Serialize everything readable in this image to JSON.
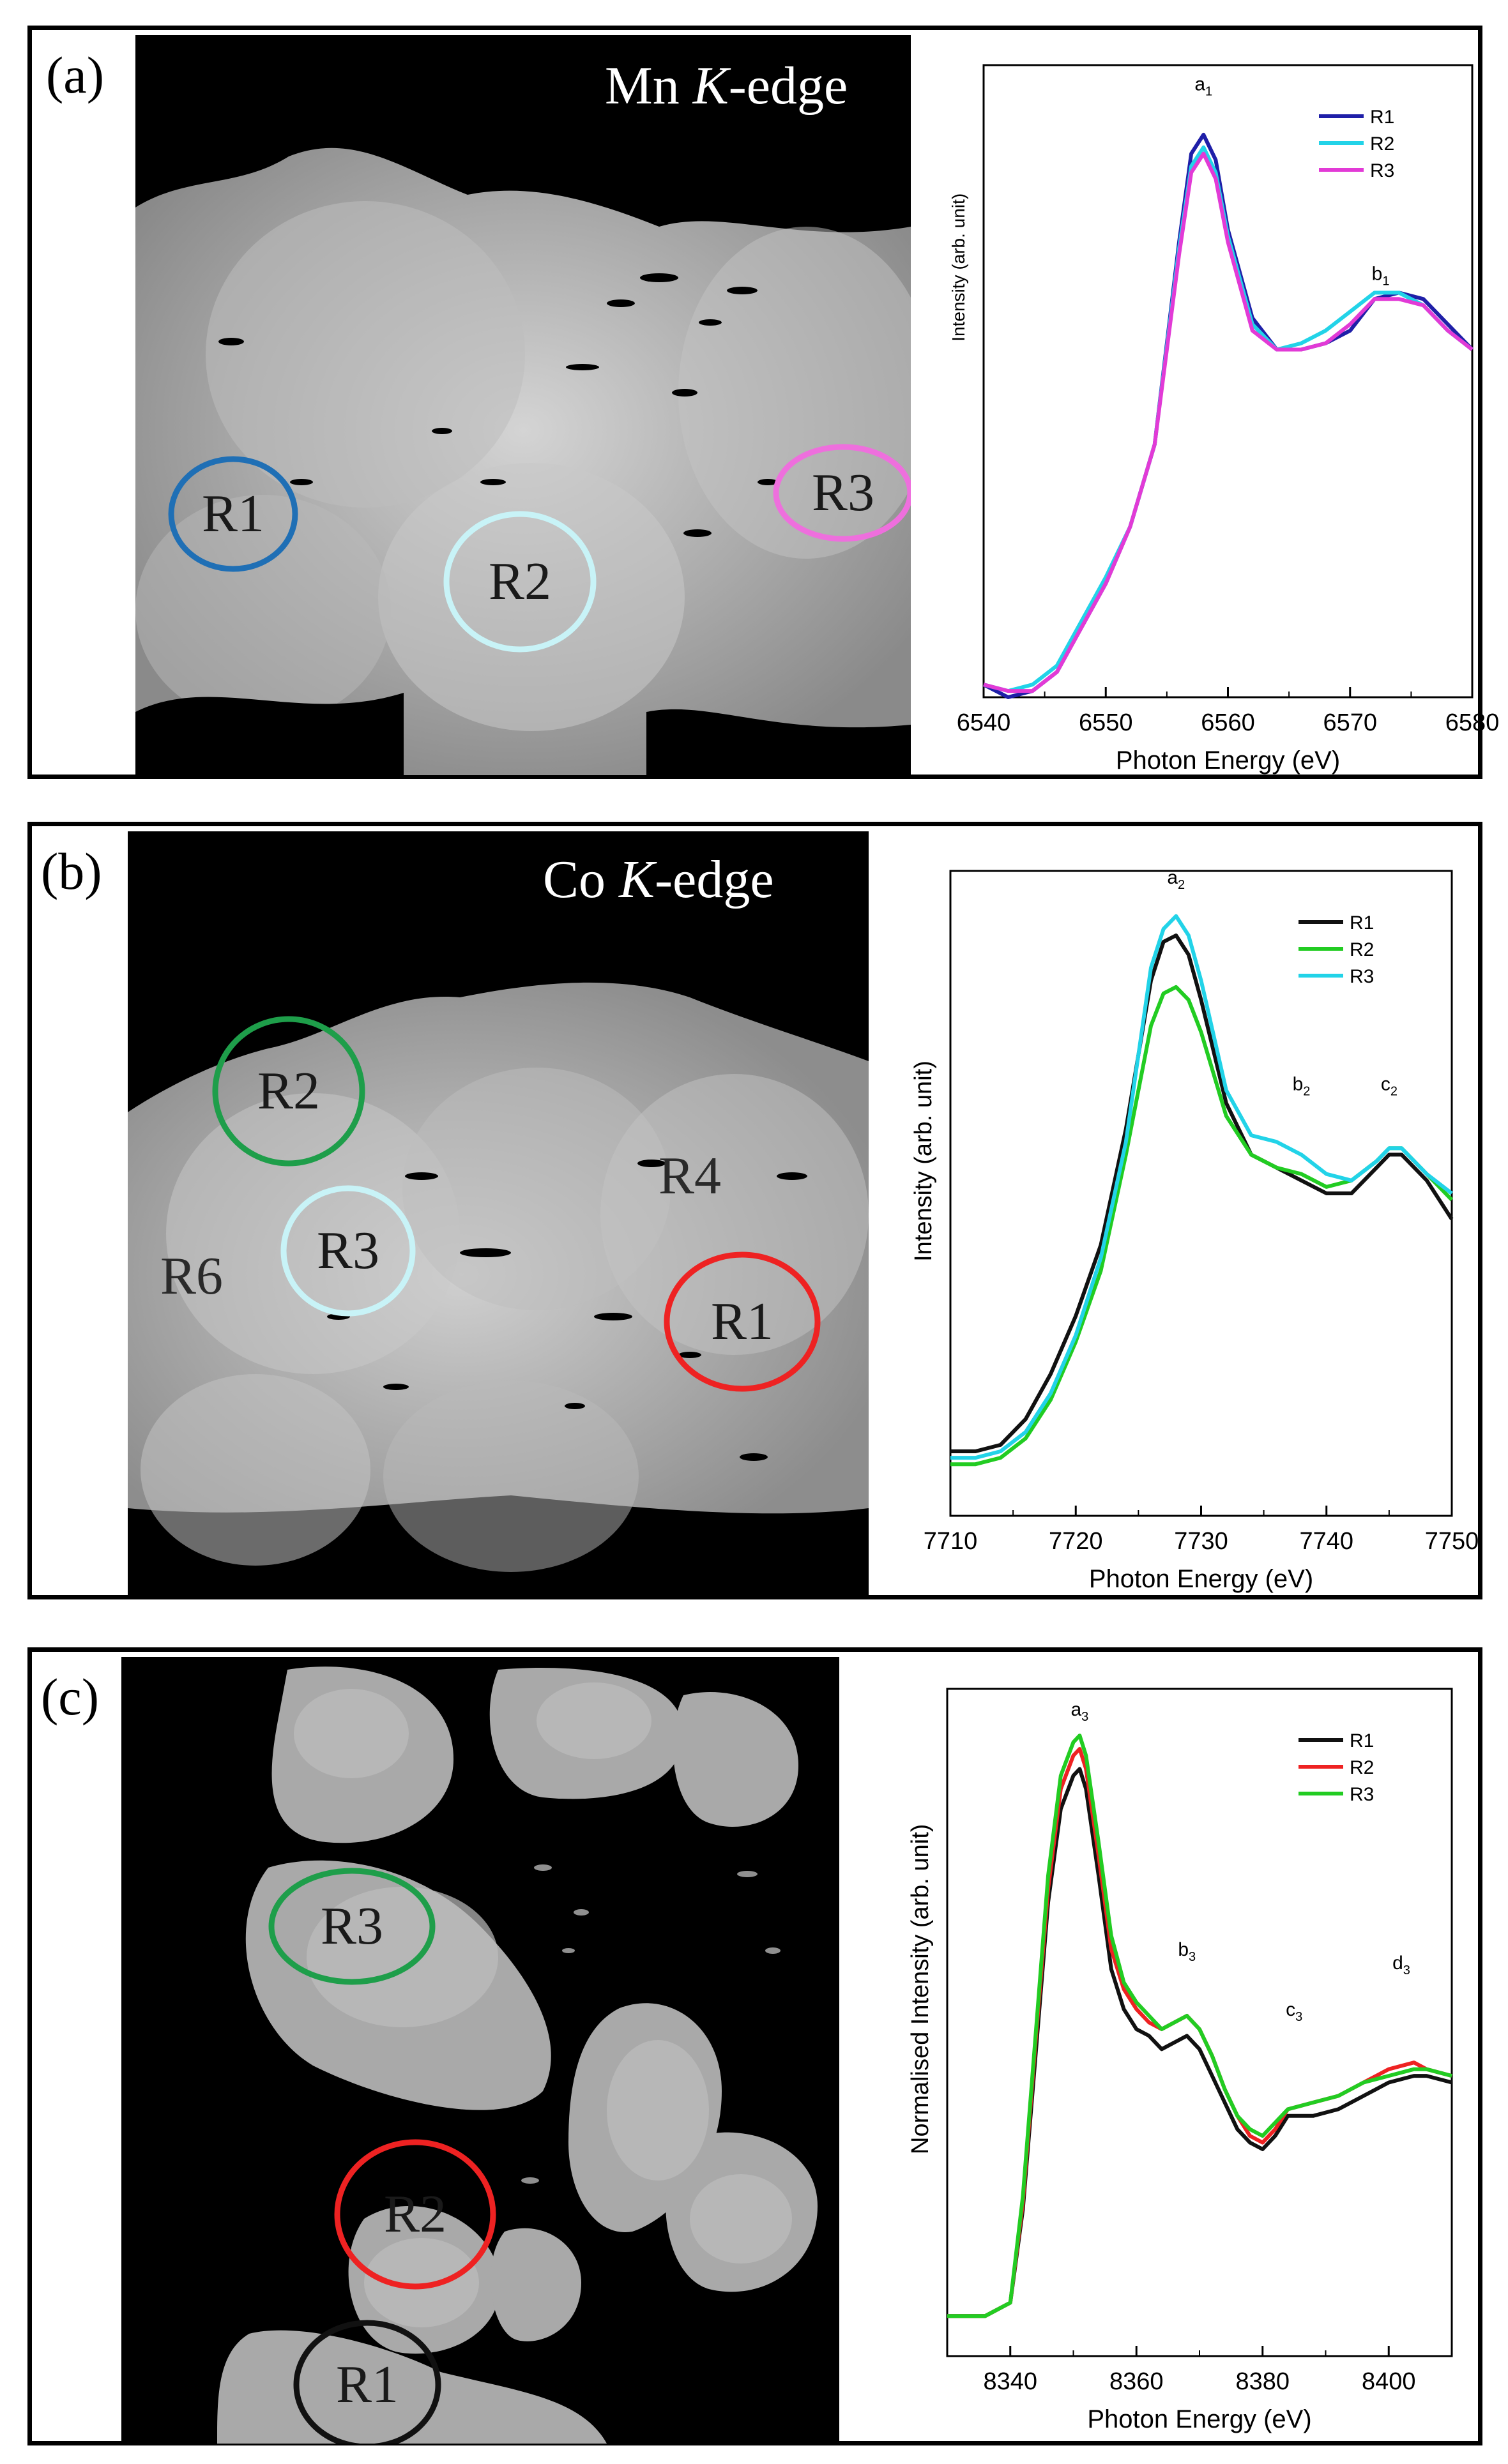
{
  "panels": [
    {
      "letter": "(a)",
      "edge_element": "Mn",
      "edge_italic": "K",
      "edge_suffix": "-edge",
      "roi_labels": [
        {
          "text": "R1",
          "color": "#1f6fb5"
        },
        {
          "text": "R2",
          "color": "#c8f3f7"
        },
        {
          "text": "R3",
          "color": "#ee6fdd"
        }
      ]
    },
    {
      "letter": "(b)",
      "edge_element": "Co",
      "edge_italic": "K",
      "edge_suffix": "-edge",
      "roi_labels": [
        {
          "text": "R1",
          "color": "#ee2222"
        },
        {
          "text": "R2",
          "color": "#1e9e4a"
        },
        {
          "text": "R3",
          "color": "#c8f3f7"
        },
        {
          "text": "R4",
          "color": null
        },
        {
          "text": "R6",
          "color": null
        }
      ]
    },
    {
      "letter": "(c)",
      "edge_element": "",
      "edge_italic": "",
      "edge_suffix": "",
      "roi_labels": [
        {
          "text": "R1",
          "color": "#111111"
        },
        {
          "text": "R2",
          "color": "#ee2222"
        },
        {
          "text": "R3",
          "color": "#1e9e4a"
        }
      ]
    }
  ],
  "chart_data": [
    {
      "type": "line",
      "title": "",
      "xlabel": "Photon Energy (eV)",
      "ylabel": "Intensity (arb. unit)",
      "xlim": [
        6540,
        6580
      ],
      "ylim": [
        0,
        1.0
      ],
      "xticks": [
        "6540",
        "6550",
        "6560",
        "6570",
        "6580"
      ],
      "legend_position": "top-right",
      "grid": false,
      "annotations": [
        {
          "text": "a",
          "sub": "1",
          "x": 6558,
          "y": 0.96
        },
        {
          "text": "b",
          "sub": "1",
          "x": 6572.5,
          "y": 0.66
        }
      ],
      "series": [
        {
          "name": "R1",
          "color": "#1f1fa8",
          "x": [
            6540,
            6542,
            6544,
            6546,
            6548,
            6550,
            6552,
            6554,
            6556,
            6557,
            6558,
            6559,
            6560,
            6562,
            6564,
            6566,
            6568,
            6570,
            6572,
            6574,
            6576,
            6578,
            6580
          ],
          "y": [
            0.02,
            0.0,
            0.01,
            0.04,
            0.11,
            0.18,
            0.27,
            0.4,
            0.72,
            0.86,
            0.89,
            0.85,
            0.74,
            0.6,
            0.55,
            0.55,
            0.56,
            0.58,
            0.63,
            0.64,
            0.63,
            0.59,
            0.55
          ]
        },
        {
          "name": "R2",
          "color": "#22d3e8",
          "x": [
            6540,
            6542,
            6544,
            6546,
            6548,
            6550,
            6552,
            6554,
            6556,
            6557,
            6558,
            6559,
            6560,
            6562,
            6564,
            6566,
            6568,
            6570,
            6572,
            6574,
            6576,
            6578,
            6580
          ],
          "y": [
            0.02,
            0.01,
            0.02,
            0.05,
            0.12,
            0.19,
            0.27,
            0.4,
            0.71,
            0.84,
            0.87,
            0.83,
            0.73,
            0.59,
            0.55,
            0.56,
            0.58,
            0.61,
            0.64,
            0.64,
            0.62,
            0.58,
            0.55
          ]
        },
        {
          "name": "R3",
          "color": "#e23ad6",
          "x": [
            6540,
            6542,
            6544,
            6546,
            6548,
            6550,
            6552,
            6554,
            6556,
            6557,
            6558,
            6559,
            6560,
            6562,
            6564,
            6566,
            6568,
            6570,
            6572,
            6574,
            6576,
            6578,
            6580
          ],
          "y": [
            0.02,
            0.01,
            0.01,
            0.04,
            0.11,
            0.18,
            0.27,
            0.4,
            0.7,
            0.83,
            0.86,
            0.82,
            0.72,
            0.58,
            0.55,
            0.55,
            0.56,
            0.59,
            0.63,
            0.63,
            0.62,
            0.58,
            0.55
          ]
        }
      ]
    },
    {
      "type": "line",
      "title": "",
      "xlabel": "Photon Energy (eV)",
      "ylabel": "Intensity (arb. unit)",
      "xlim": [
        7710,
        7750
      ],
      "ylim": [
        0,
        1.0
      ],
      "xticks": [
        "7710",
        "7720",
        "7730",
        "7740",
        "7750"
      ],
      "legend_position": "top-right",
      "grid": false,
      "annotations": [
        {
          "text": "a",
          "sub": "2",
          "x": 7728,
          "y": 0.98
        },
        {
          "text": "b",
          "sub": "2",
          "x": 7738,
          "y": 0.66
        },
        {
          "text": "c",
          "sub": "2",
          "x": 7745,
          "y": 0.66
        }
      ],
      "series": [
        {
          "name": "R1",
          "color": "#111111",
          "x": [
            7710,
            7712,
            7714,
            7716,
            7718,
            7720,
            7722,
            7724,
            7726,
            7727,
            7728,
            7729,
            7730,
            7732,
            7734,
            7736,
            7738,
            7740,
            7742,
            7744,
            7745,
            7746,
            7748,
            7750
          ],
          "y": [
            0.1,
            0.1,
            0.11,
            0.15,
            0.22,
            0.31,
            0.42,
            0.6,
            0.83,
            0.89,
            0.9,
            0.87,
            0.8,
            0.64,
            0.56,
            0.54,
            0.52,
            0.5,
            0.5,
            0.54,
            0.56,
            0.56,
            0.52,
            0.46
          ]
        },
        {
          "name": "R2",
          "color": "#22cc22",
          "x": [
            7710,
            7712,
            7714,
            7716,
            7718,
            7720,
            7722,
            7724,
            7726,
            7727,
            7728,
            7729,
            7730,
            7732,
            7734,
            7736,
            7738,
            7740,
            7742,
            7744,
            7745,
            7746,
            7748,
            7750
          ],
          "y": [
            0.08,
            0.08,
            0.09,
            0.12,
            0.18,
            0.27,
            0.38,
            0.56,
            0.76,
            0.81,
            0.82,
            0.8,
            0.75,
            0.62,
            0.56,
            0.54,
            0.53,
            0.51,
            0.52,
            0.55,
            0.57,
            0.57,
            0.53,
            0.49
          ]
        },
        {
          "name": "R3",
          "color": "#22d3e8",
          "x": [
            7710,
            7712,
            7714,
            7716,
            7718,
            7720,
            7722,
            7724,
            7726,
            7727,
            7728,
            7729,
            7730,
            7732,
            7734,
            7736,
            7738,
            7740,
            7742,
            7744,
            7745,
            7746,
            7748,
            7750
          ],
          "y": [
            0.09,
            0.09,
            0.1,
            0.13,
            0.19,
            0.28,
            0.4,
            0.58,
            0.85,
            0.91,
            0.93,
            0.9,
            0.83,
            0.66,
            0.59,
            0.58,
            0.56,
            0.53,
            0.52,
            0.55,
            0.57,
            0.57,
            0.53,
            0.5
          ]
        }
      ]
    },
    {
      "type": "line",
      "title": "",
      "xlabel": "Photon Energy (eV)",
      "ylabel": "Normalised Intensity (arb. unit)",
      "xlim": [
        8330,
        8410
      ],
      "ylim": [
        0,
        1.0
      ],
      "xticks": [
        "8340",
        "8360",
        "8380",
        "8400"
      ],
      "legend_position": "top-right",
      "grid": false,
      "annotations": [
        {
          "text": "a",
          "sub": "3",
          "x": 8351,
          "y": 0.96
        },
        {
          "text": "b",
          "sub": "3",
          "x": 8368,
          "y": 0.6
        },
        {
          "text": "c",
          "sub": "3",
          "x": 8385,
          "y": 0.51
        },
        {
          "text": "d",
          "sub": "3",
          "x": 8402,
          "y": 0.58
        }
      ],
      "series": [
        {
          "name": "R1",
          "color": "#111111",
          "x": [
            8330,
            8336,
            8340,
            8342,
            8344,
            8346,
            8348,
            8350,
            8351,
            8352,
            8354,
            8356,
            8358,
            8360,
            8362,
            8364,
            8366,
            8368,
            8370,
            8372,
            8374,
            8376,
            8378,
            8380,
            8382,
            8384,
            8388,
            8392,
            8396,
            8400,
            8404,
            8406,
            8410
          ],
          "y": [
            0.06,
            0.06,
            0.08,
            0.22,
            0.45,
            0.68,
            0.82,
            0.87,
            0.88,
            0.85,
            0.72,
            0.58,
            0.52,
            0.49,
            0.48,
            0.46,
            0.47,
            0.48,
            0.46,
            0.42,
            0.38,
            0.34,
            0.32,
            0.31,
            0.33,
            0.36,
            0.36,
            0.37,
            0.39,
            0.41,
            0.42,
            0.42,
            0.41
          ]
        },
        {
          "name": "R2",
          "color": "#ee2222",
          "x": [
            8330,
            8336,
            8340,
            8342,
            8344,
            8346,
            8348,
            8350,
            8351,
            8352,
            8354,
            8356,
            8358,
            8360,
            8362,
            8364,
            8366,
            8368,
            8370,
            8372,
            8374,
            8376,
            8378,
            8380,
            8382,
            8384,
            8388,
            8392,
            8396,
            8400,
            8404,
            8406,
            8410
          ],
          "y": [
            0.06,
            0.06,
            0.08,
            0.23,
            0.47,
            0.7,
            0.85,
            0.9,
            0.91,
            0.88,
            0.75,
            0.61,
            0.55,
            0.52,
            0.5,
            0.49,
            0.5,
            0.51,
            0.49,
            0.45,
            0.4,
            0.36,
            0.33,
            0.32,
            0.34,
            0.37,
            0.38,
            0.39,
            0.41,
            0.43,
            0.44,
            0.43,
            0.42
          ]
        },
        {
          "name": "R3",
          "color": "#22cc22",
          "x": [
            8330,
            8336,
            8340,
            8342,
            8344,
            8346,
            8348,
            8350,
            8351,
            8352,
            8354,
            8356,
            8358,
            8360,
            8362,
            8364,
            8366,
            8368,
            8370,
            8372,
            8374,
            8376,
            8378,
            8380,
            8382,
            8384,
            8388,
            8392,
            8396,
            8400,
            8404,
            8406,
            8410
          ],
          "y": [
            0.06,
            0.06,
            0.08,
            0.24,
            0.48,
            0.72,
            0.87,
            0.92,
            0.93,
            0.9,
            0.77,
            0.63,
            0.56,
            0.53,
            0.51,
            0.49,
            0.5,
            0.51,
            0.49,
            0.45,
            0.4,
            0.36,
            0.34,
            0.33,
            0.35,
            0.37,
            0.38,
            0.39,
            0.41,
            0.42,
            0.43,
            0.43,
            0.42
          ]
        }
      ]
    }
  ]
}
